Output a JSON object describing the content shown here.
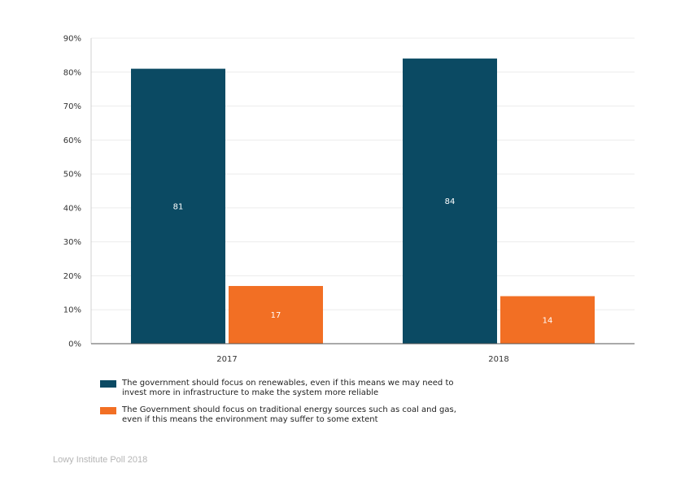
{
  "chart_data": {
    "type": "bar",
    "categories": [
      "2017",
      "2018"
    ],
    "series": [
      {
        "name": "The government should focus on renewables, even if this means we may need to invest more in infrastructure to make the system more reliable",
        "name_lines": [
          "The government should focus on renewables, even if this means we may need to",
          "invest more in infrastructure to make the system more reliable"
        ],
        "color": "#0b4a63",
        "values": [
          81,
          84
        ]
      },
      {
        "name": "The Government should focus on traditional energy sources such as coal and gas, even if this means the environment may suffer to some extent",
        "name_lines": [
          "The Government should focus on traditional energy sources such as coal and gas,",
          "even if this means the environment may suffer to some extent"
        ],
        "color": "#f26f24",
        "values": [
          17,
          14
        ]
      }
    ],
    "yticks": [
      "0%",
      "10%",
      "20%",
      "30%",
      "40%",
      "50%",
      "60%",
      "70%",
      "80%",
      "90%"
    ],
    "ylim": [
      0,
      90
    ],
    "title": "",
    "xlabel": "",
    "ylabel": "",
    "grid": true,
    "legend_position": "bottom"
  },
  "source": "Lowy Institute Poll 2018"
}
